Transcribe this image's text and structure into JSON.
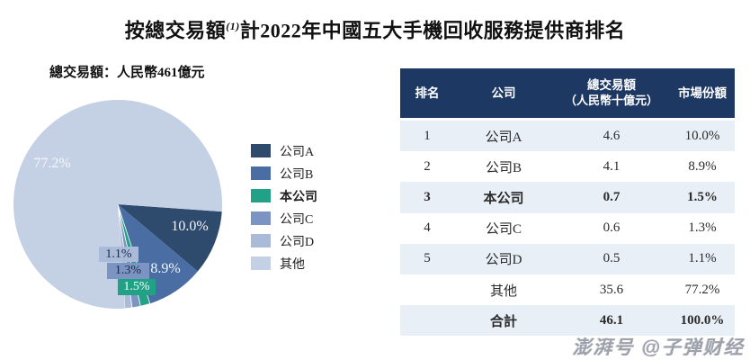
{
  "page": {
    "title_prefix": "按總交易額",
    "title_sup": "(1)",
    "title_suffix": "計2022年中國五大手機回收服務提供商排名",
    "subtitle": "總交易額：人民幣461億元",
    "watermark": "澎湃号 @子弹财经"
  },
  "colors": {
    "header_bg": "#1e3864",
    "row_alt_bg": "#e9eff7",
    "header_text": "#ffffff",
    "body_text": "#2b2b2b",
    "callout_dark_text": "#1c2b4a",
    "callout_light_text": "#ffffff",
    "watermark": "#979da6"
  },
  "chart_data": {
    "type": "pie",
    "title": "按總交易額(1)計2022年中國五大手機回收服務提供商排名",
    "subtitle": "總交易額：人民幣461億元",
    "unit": "人民幣十億元",
    "start_angle_deg": -4,
    "direction": "clockwise",
    "legend_position": "right",
    "slices": [
      {
        "label": "公司A",
        "value": 4.6,
        "pct": 10.0,
        "text": "10.0%",
        "color": "#2e4a6d",
        "label_xy": [
          211,
          252
        ]
      },
      {
        "label": "公司B",
        "value": 4.1,
        "pct": 8.9,
        "text": "8.9%",
        "color": "#4a6da4",
        "label_xy": [
          184,
          299
        ]
      },
      {
        "label": "本公司",
        "value": 0.7,
        "pct": 1.5,
        "text": "1.5%",
        "color": "#21a287",
        "emphasis": true,
        "box_xy": [
          131,
          310
        ],
        "box_wh": [
          42,
          18
        ],
        "box_text_color": "#ffffff"
      },
      {
        "label": "公司C",
        "value": 0.6,
        "pct": 1.3,
        "text": "1.3%",
        "color": "#7b94c1",
        "box_xy": [
          119,
          292
        ],
        "box_wh": [
          47,
          18
        ],
        "box_text_color": "#1c2b4a"
      },
      {
        "label": "公司D",
        "value": 0.5,
        "pct": 1.1,
        "text": "1.1%",
        "color": "#a9bbd8",
        "box_xy": [
          110,
          274
        ],
        "box_wh": [
          44,
          17
        ],
        "box_text_color": "#1c2b4a"
      },
      {
        "label": "其他",
        "value": 35.6,
        "pct": 77.2,
        "text": "77.2%",
        "color": "#c4d1e4",
        "label_xy": [
          58,
          182
        ]
      }
    ],
    "total": {
      "label": "合計",
      "value": 46.1,
      "pct": 100.0
    }
  },
  "table": {
    "columns": [
      {
        "label": "排名"
      },
      {
        "label": "公司"
      },
      {
        "label": "總交易額",
        "sub": "（人民幣十億元）"
      },
      {
        "label": "市場份額"
      }
    ],
    "rows": [
      [
        "1",
        "公司A",
        "4.6",
        "10.0%"
      ],
      [
        "2",
        "公司B",
        "4.1",
        "8.9%"
      ],
      [
        "3",
        "本公司",
        "0.7",
        "1.5%"
      ],
      [
        "4",
        "公司C",
        "0.6",
        "1.3%"
      ],
      [
        "5",
        "公司D",
        "0.5",
        "1.1%"
      ],
      [
        "",
        "其他",
        "35.6",
        "77.2%"
      ],
      [
        "",
        "合計",
        "46.1",
        "100.0%"
      ]
    ],
    "bold_rows": [
      2,
      6
    ],
    "alt_rows": [
      0,
      2,
      4,
      6
    ]
  }
}
